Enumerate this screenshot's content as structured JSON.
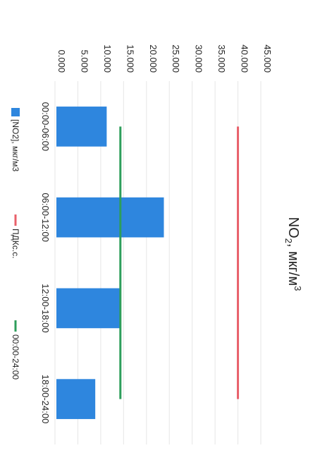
{
  "chart_data": {
    "type": "bar",
    "title_main": "NO",
    "title_sub": "2",
    "title_rest": ", мкг/м",
    "title_sup": "3",
    "categories": [
      "00:00-06:00",
      "06:00-12:00",
      "12:00-18:00",
      "18:00-24:00"
    ],
    "y_ticks": [
      "0.000",
      "5.000",
      "10.000",
      "15.000",
      "20.000",
      "25.000",
      "30.000",
      "35.000",
      "40.000",
      "45.000"
    ],
    "ylim": [
      0,
      45
    ],
    "series": [
      {
        "name": "[NO2], мкг/м3",
        "type": "bar",
        "color": "#2e86de",
        "values": [
          11.0,
          23.5,
          14.0,
          8.5
        ]
      },
      {
        "name": "ПДКс.с.",
        "type": "line",
        "color": "#e8606a",
        "values": [
          40,
          40,
          40,
          40
        ]
      },
      {
        "name": "00:00-24:00",
        "type": "line",
        "color": "#2e9e5b",
        "values": [
          14.3,
          14.3,
          14.3,
          14.3
        ]
      }
    ],
    "grid": true,
    "legend": "bottom",
    "orientation": "rotated-90"
  }
}
